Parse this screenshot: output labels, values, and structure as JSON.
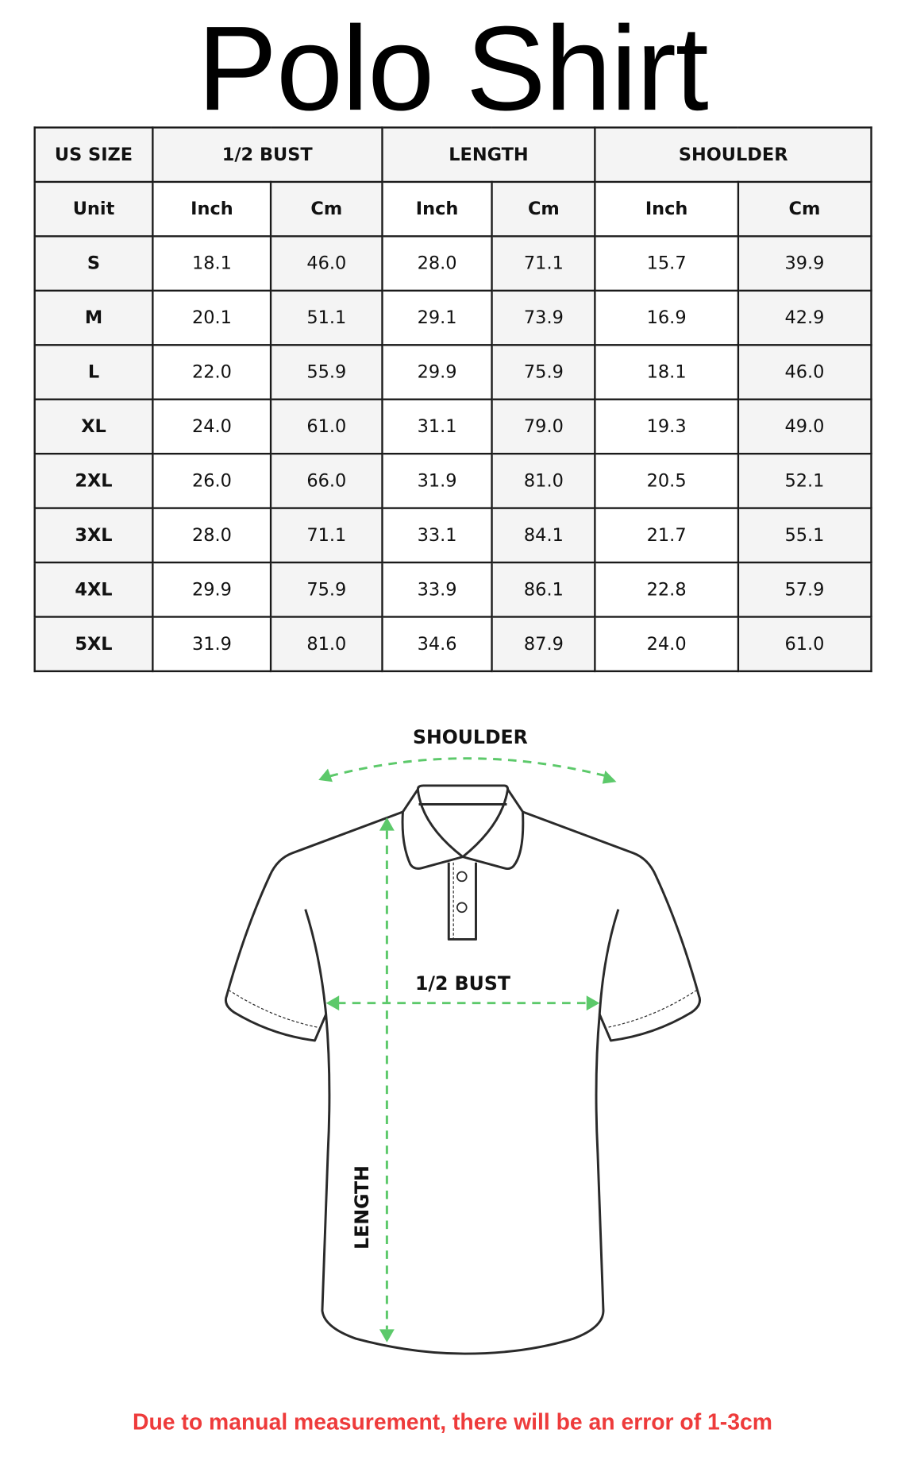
{
  "title": "Polo Shirt",
  "table": {
    "header": [
      "US SIZE",
      "1/2 BUST",
      "LENGTH",
      "SHOULDER"
    ],
    "units": [
      "Unit",
      "Inch",
      "Cm",
      "Inch",
      "Cm",
      "Inch",
      "Cm"
    ],
    "rows": [
      [
        "S",
        "18.1",
        "46.0",
        "28.0",
        "71.1",
        "15.7",
        "39.9"
      ],
      [
        "M",
        "20.1",
        "51.1",
        "29.1",
        "73.9",
        "16.9",
        "42.9"
      ],
      [
        "L",
        "22.0",
        "55.9",
        "29.9",
        "75.9",
        "18.1",
        "46.0"
      ],
      [
        "XL",
        "24.0",
        "61.0",
        "31.1",
        "79.0",
        "19.3",
        "49.0"
      ],
      [
        "2XL",
        "26.0",
        "66.0",
        "31.9",
        "81.0",
        "20.5",
        "52.1"
      ],
      [
        "3XL",
        "28.0",
        "71.1",
        "33.1",
        "84.1",
        "21.7",
        "55.1"
      ],
      [
        "4XL",
        "29.9",
        "75.9",
        "33.9",
        "86.1",
        "22.8",
        "57.9"
      ],
      [
        "5XL",
        "31.9",
        "81.0",
        "34.6",
        "87.9",
        "24.0",
        "61.0"
      ]
    ]
  },
  "diagram": {
    "shoulder_label": "SHOULDER",
    "bust_label": "1/2 BUST",
    "length_label": "LENGTH",
    "arrow_color": "#5cc96a"
  },
  "note": "Due to manual measurement, there will be an error of 1-3cm",
  "colors": {
    "note": "#ee3b3b",
    "cell_gray": "#f4f4f4"
  }
}
